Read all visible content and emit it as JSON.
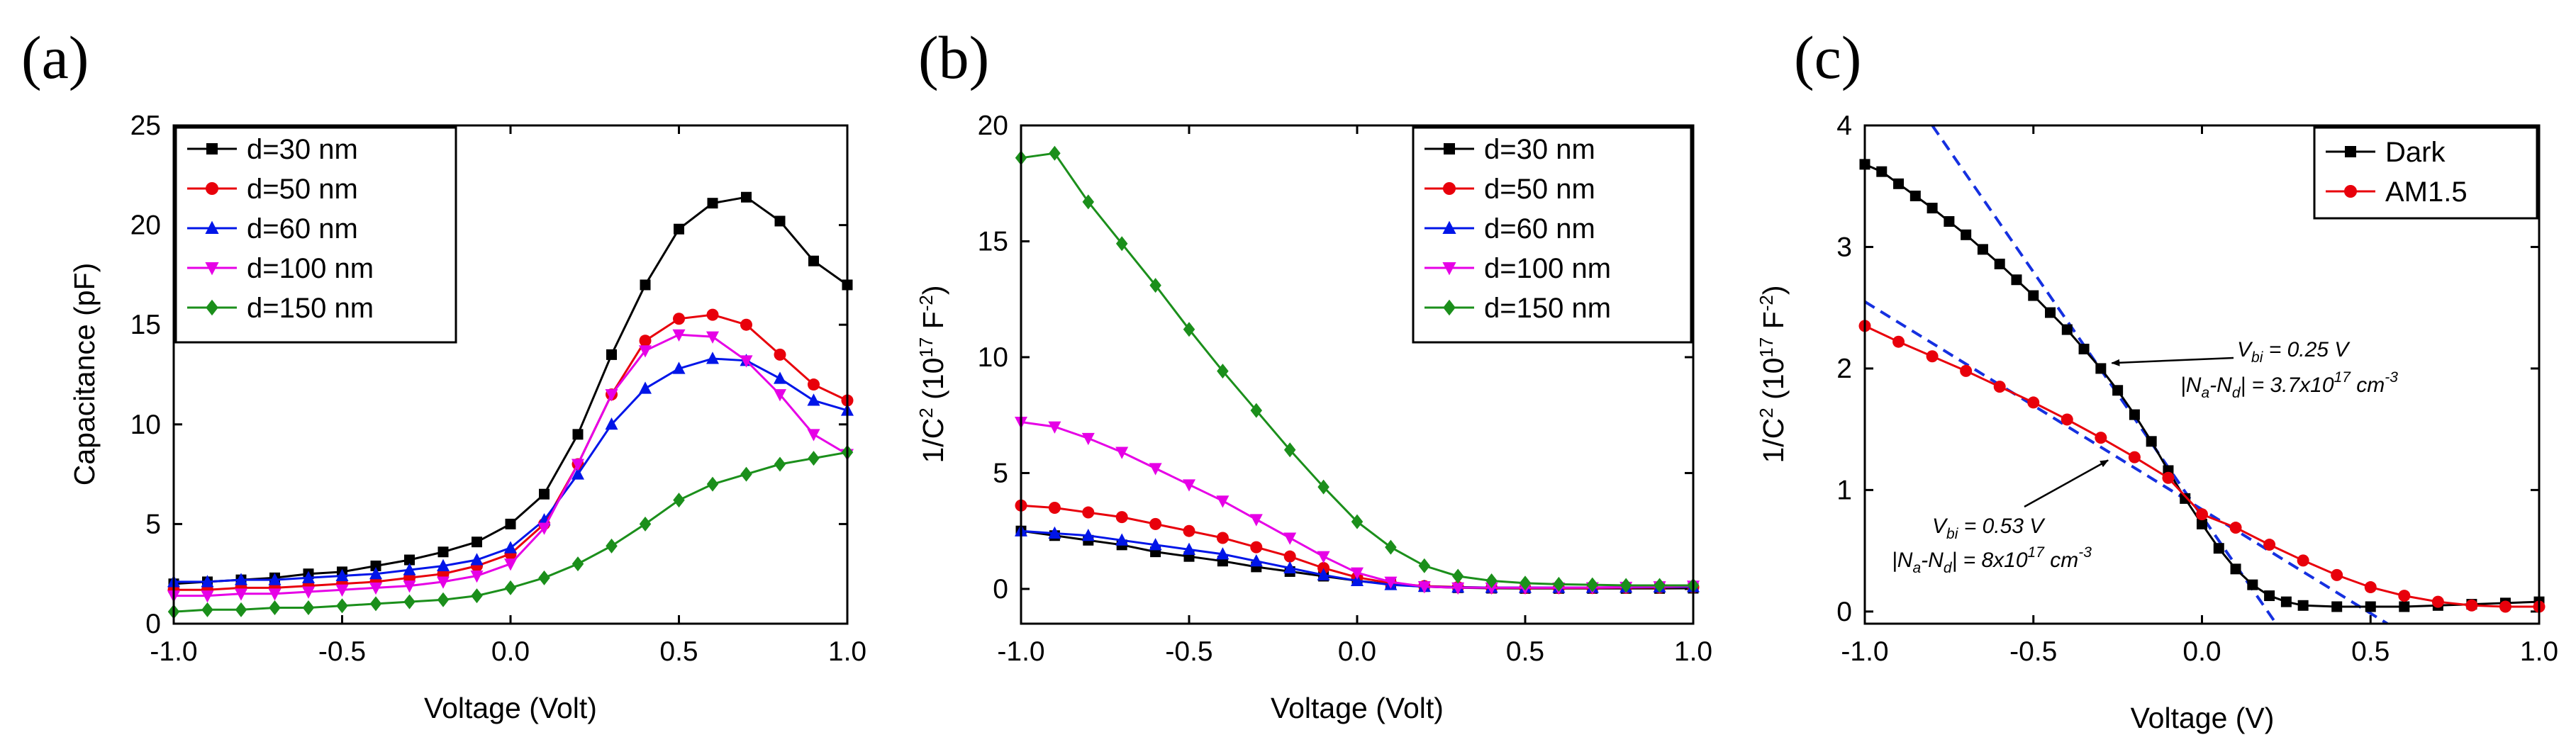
{
  "chart_data": [
    {
      "panel_label": "(a)",
      "type": "line",
      "xlabel": "Voltage (Volt)",
      "ylabel": "Capacitance (pF)",
      "xlim": [
        -1.0,
        1.0
      ],
      "ylim": [
        0,
        25
      ],
      "xticks": [
        -1.0,
        -0.5,
        0.0,
        0.5,
        1.0
      ],
      "yticks": [
        0,
        5,
        10,
        15,
        20,
        25
      ],
      "xtick_labels": [
        "-1.0",
        "-0.5",
        "0.0",
        "0.5",
        "1.0"
      ],
      "ytick_labels": [
        "0",
        "5",
        "10",
        "15",
        "20",
        "25"
      ],
      "legend_position": "top-left",
      "series": [
        {
          "name": "d=30 nm",
          "color": "#000000",
          "marker": "square",
          "x": [
            -1.0,
            -0.9,
            -0.8,
            -0.7,
            -0.6,
            -0.5,
            -0.4,
            -0.3,
            -0.2,
            -0.1,
            0.0,
            0.1,
            0.2,
            0.3,
            0.4,
            0.5,
            0.6,
            0.7,
            0.8,
            0.9,
            1.0
          ],
          "y": [
            2.0,
            2.1,
            2.2,
            2.3,
            2.5,
            2.6,
            2.9,
            3.2,
            3.6,
            4.1,
            5.0,
            6.5,
            9.5,
            13.5,
            17.0,
            19.8,
            21.1,
            21.4,
            20.2,
            18.2,
            17.0
          ]
        },
        {
          "name": "d=50 nm",
          "color": "#e8000b",
          "marker": "circle",
          "x": [
            -1.0,
            -0.9,
            -0.8,
            -0.7,
            -0.6,
            -0.5,
            -0.4,
            -0.3,
            -0.2,
            -0.1,
            0.0,
            0.1,
            0.2,
            0.3,
            0.4,
            0.5,
            0.6,
            0.7,
            0.8,
            0.9,
            1.0
          ],
          "y": [
            1.7,
            1.7,
            1.8,
            1.8,
            1.9,
            2.0,
            2.1,
            2.3,
            2.5,
            2.9,
            3.5,
            5.0,
            8.0,
            11.5,
            14.2,
            15.3,
            15.5,
            15.0,
            13.5,
            12.0,
            11.2
          ]
        },
        {
          "name": "d=60 nm",
          "color": "#0015e8",
          "marker": "triangle-up",
          "x": [
            -1.0,
            -0.9,
            -0.8,
            -0.7,
            -0.6,
            -0.5,
            -0.4,
            -0.3,
            -0.2,
            -0.1,
            0.0,
            0.1,
            0.2,
            0.3,
            0.4,
            0.5,
            0.6,
            0.7,
            0.8,
            0.9,
            1.0
          ],
          "y": [
            2.1,
            2.1,
            2.2,
            2.2,
            2.3,
            2.4,
            2.5,
            2.7,
            2.9,
            3.2,
            3.8,
            5.2,
            7.5,
            10.0,
            11.8,
            12.8,
            13.3,
            13.2,
            12.3,
            11.2,
            10.7
          ]
        },
        {
          "name": "d=100 nm",
          "color": "#e600e6",
          "marker": "triangle-down",
          "x": [
            -1.0,
            -0.9,
            -0.8,
            -0.7,
            -0.6,
            -0.5,
            -0.4,
            -0.3,
            -0.2,
            -0.1,
            0.0,
            0.1,
            0.2,
            0.3,
            0.4,
            0.5,
            0.6,
            0.7,
            0.8,
            0.9,
            1.0
          ],
          "y": [
            1.4,
            1.4,
            1.5,
            1.5,
            1.6,
            1.7,
            1.8,
            1.9,
            2.1,
            2.4,
            3.0,
            4.8,
            8.0,
            11.5,
            13.7,
            14.5,
            14.4,
            13.2,
            11.5,
            9.5,
            8.5
          ]
        },
        {
          "name": "d=150 nm",
          "color": "#1b8f1b",
          "marker": "diamond",
          "x": [
            -1.0,
            -0.9,
            -0.8,
            -0.7,
            -0.6,
            -0.5,
            -0.4,
            -0.3,
            -0.2,
            -0.1,
            0.0,
            0.1,
            0.2,
            0.3,
            0.4,
            0.5,
            0.6,
            0.7,
            0.8,
            0.9,
            1.0
          ],
          "y": [
            0.6,
            0.7,
            0.7,
            0.8,
            0.8,
            0.9,
            1.0,
            1.1,
            1.2,
            1.4,
            1.8,
            2.3,
            3.0,
            3.9,
            5.0,
            6.2,
            7.0,
            7.5,
            8.0,
            8.3,
            8.6
          ]
        }
      ]
    },
    {
      "panel_label": "(b)",
      "type": "line",
      "xlabel": "Voltage (Volt)",
      "ylabel_main": "1/C",
      "ylabel_sup1": "2",
      "ylabel_mid": " (10",
      "ylabel_sup2": "17",
      "ylabel_unit": " F",
      "ylabel_sup3": "-2",
      "ylabel_end": ")",
      "xlim": [
        -1.0,
        1.0
      ],
      "ylim": [
        -1.5,
        20
      ],
      "xticks": [
        -1.0,
        -0.5,
        0.0,
        0.5,
        1.0
      ],
      "yticks": [
        0,
        5,
        10,
        15,
        20
      ],
      "xtick_labels": [
        "-1.0",
        "-0.5",
        "0.0",
        "0.5",
        "1.0"
      ],
      "ytick_labels": [
        "0",
        "5",
        "10",
        "15",
        "20"
      ],
      "legend_position": "top-right",
      "series": [
        {
          "name": "d=30 nm",
          "color": "#000000",
          "marker": "square",
          "x": [
            -1.0,
            -0.9,
            -0.8,
            -0.7,
            -0.6,
            -0.5,
            -0.4,
            -0.3,
            -0.2,
            -0.1,
            0.0,
            0.1,
            0.2,
            0.3,
            0.4,
            0.5,
            0.6,
            0.7,
            0.8,
            0.9,
            1.0
          ],
          "y": [
            2.5,
            2.3,
            2.1,
            1.9,
            1.6,
            1.4,
            1.2,
            0.95,
            0.75,
            0.55,
            0.35,
            0.2,
            0.1,
            0.05,
            0.03,
            0.02,
            0.02,
            0.02,
            0.02,
            0.02,
            0.03
          ]
        },
        {
          "name": "d=50 nm",
          "color": "#e8000b",
          "marker": "circle",
          "x": [
            -1.0,
            -0.9,
            -0.8,
            -0.7,
            -0.6,
            -0.5,
            -0.4,
            -0.3,
            -0.2,
            -0.1,
            0.0,
            0.1,
            0.2,
            0.3,
            0.4,
            0.5,
            0.6,
            0.7,
            0.8,
            0.9,
            1.0
          ],
          "y": [
            3.6,
            3.5,
            3.3,
            3.1,
            2.8,
            2.5,
            2.2,
            1.8,
            1.4,
            0.9,
            0.5,
            0.25,
            0.12,
            0.08,
            0.05,
            0.04,
            0.04,
            0.04,
            0.05,
            0.06,
            0.08
          ]
        },
        {
          "name": "d=60 nm",
          "color": "#0015e8",
          "marker": "triangle-up",
          "x": [
            -1.0,
            -0.9,
            -0.8,
            -0.7,
            -0.6,
            -0.5,
            -0.4,
            -0.3,
            -0.2,
            -0.1,
            0.0,
            0.1,
            0.2,
            0.3,
            0.4,
            0.5,
            0.6,
            0.7,
            0.8,
            0.9,
            1.0
          ],
          "y": [
            2.5,
            2.4,
            2.3,
            2.1,
            1.9,
            1.7,
            1.5,
            1.2,
            0.9,
            0.6,
            0.35,
            0.18,
            0.1,
            0.07,
            0.06,
            0.06,
            0.06,
            0.06,
            0.07,
            0.08,
            0.09
          ]
        },
        {
          "name": "d=100 nm",
          "color": "#e600e6",
          "marker": "triangle-down",
          "x": [
            -1.0,
            -0.9,
            -0.8,
            -0.7,
            -0.6,
            -0.5,
            -0.4,
            -0.3,
            -0.2,
            -0.1,
            0.0,
            0.1,
            0.2,
            0.3,
            0.4,
            0.5,
            0.6,
            0.7,
            0.8,
            0.9,
            1.0
          ],
          "y": [
            7.2,
            7.0,
            6.5,
            5.9,
            5.2,
            4.5,
            3.8,
            3.0,
            2.2,
            1.4,
            0.7,
            0.3,
            0.1,
            0.05,
            0.05,
            0.05,
            0.05,
            0.06,
            0.08,
            0.1,
            0.13
          ]
        },
        {
          "name": "d=150 nm",
          "color": "#1b8f1b",
          "marker": "diamond",
          "x": [
            -1.0,
            -0.9,
            -0.8,
            -0.7,
            -0.6,
            -0.5,
            -0.4,
            -0.3,
            -0.2,
            -0.1,
            0.0,
            0.1,
            0.2,
            0.3,
            0.4,
            0.5,
            0.6,
            0.7,
            0.8,
            0.9,
            1.0
          ],
          "y": [
            18.6,
            18.8,
            16.7,
            14.9,
            13.1,
            11.2,
            9.4,
            7.7,
            6.0,
            4.4,
            2.9,
            1.8,
            1.0,
            0.55,
            0.35,
            0.25,
            0.2,
            0.18,
            0.15,
            0.15,
            0.15
          ]
        }
      ]
    },
    {
      "panel_label": "(c)",
      "type": "line",
      "xlabel": "Voltage (V)",
      "ylabel_main": "1/C",
      "ylabel_sup1": "2",
      "ylabel_mid": " (10",
      "ylabel_sup2": "17",
      "ylabel_unit": " F",
      "ylabel_sup3": "-2",
      "ylabel_end": ")",
      "xlim": [
        -1.0,
        1.0
      ],
      "ylim": [
        -0.1,
        4.0
      ],
      "xticks": [
        -1.0,
        -0.5,
        0.0,
        0.5,
        1.0
      ],
      "yticks": [
        0,
        1,
        2,
        3,
        4
      ],
      "xtick_labels": [
        "-1.0",
        "-0.5",
        "0.0",
        "0.5",
        "1.0"
      ],
      "ytick_labels": [
        "0",
        "1",
        "2",
        "3",
        "4"
      ],
      "legend_position": "top-right",
      "series": [
        {
          "name": "Dark",
          "color": "#000000",
          "marker": "square",
          "x": [
            -1.0,
            -0.95,
            -0.9,
            -0.85,
            -0.8,
            -0.75,
            -0.7,
            -0.65,
            -0.6,
            -0.55,
            -0.5,
            -0.45,
            -0.4,
            -0.35,
            -0.3,
            -0.25,
            -0.2,
            -0.15,
            -0.1,
            -0.05,
            0.0,
            0.05,
            0.1,
            0.15,
            0.2,
            0.25,
            0.3,
            0.4,
            0.5,
            0.6,
            0.7,
            0.8,
            0.9,
            1.0
          ],
          "y": [
            3.68,
            3.62,
            3.52,
            3.42,
            3.32,
            3.21,
            3.1,
            2.98,
            2.86,
            2.73,
            2.6,
            2.46,
            2.32,
            2.16,
            2.0,
            1.82,
            1.62,
            1.4,
            1.16,
            0.93,
            0.72,
            0.52,
            0.35,
            0.22,
            0.13,
            0.08,
            0.05,
            0.04,
            0.04,
            0.04,
            0.05,
            0.06,
            0.07,
            0.08
          ]
        },
        {
          "name": "AM1.5",
          "color": "#e8000b",
          "marker": "circle",
          "x": [
            -1.0,
            -0.9,
            -0.8,
            -0.7,
            -0.6,
            -0.5,
            -0.4,
            -0.3,
            -0.2,
            -0.1,
            0.0,
            0.1,
            0.2,
            0.3,
            0.4,
            0.5,
            0.6,
            0.7,
            0.8,
            0.9,
            1.0
          ],
          "y": [
            2.35,
            2.22,
            2.1,
            1.98,
            1.85,
            1.72,
            1.58,
            1.43,
            1.27,
            1.1,
            0.8,
            0.69,
            0.55,
            0.42,
            0.3,
            0.2,
            0.13,
            0.08,
            0.05,
            0.04,
            0.04
          ]
        }
      ],
      "fit_lines": [
        {
          "name": "dark-fit",
          "color": "#1530e0",
          "x": [
            -0.8,
            0.22
          ],
          "y": [
            4.0,
            -0.1
          ]
        },
        {
          "name": "am15-fit",
          "color": "#1530e0",
          "x": [
            -1.0,
            0.55
          ],
          "y": [
            2.55,
            -0.1
          ]
        }
      ],
      "annotations": {
        "dark": {
          "vbi_pre": "V",
          "vbi_sub": "bi",
          "vbi_post": " = 0.25 V",
          "n_pre": "|N",
          "n_sub1": "a",
          "n_mid": "-N",
          "n_sub2": "d",
          "n_mid2": "| = 3.7x10",
          "n_sup": "17",
          "n_post": " cm",
          "n_sup2": "-3",
          "arrow_to": [
            -0.28,
            2.08
          ]
        },
        "am15": {
          "vbi_pre": "V",
          "vbi_sub": "bi",
          "vbi_post": " = 0.53 V",
          "n_pre": "|N",
          "n_sub1": "a",
          "n_mid": "-N",
          "n_sub2": "d",
          "n_mid2": "| = 8x10",
          "n_sup": "17",
          "n_post": " cm",
          "n_sup2": "-3",
          "arrow_to": [
            -0.27,
            1.28
          ]
        }
      }
    }
  ]
}
